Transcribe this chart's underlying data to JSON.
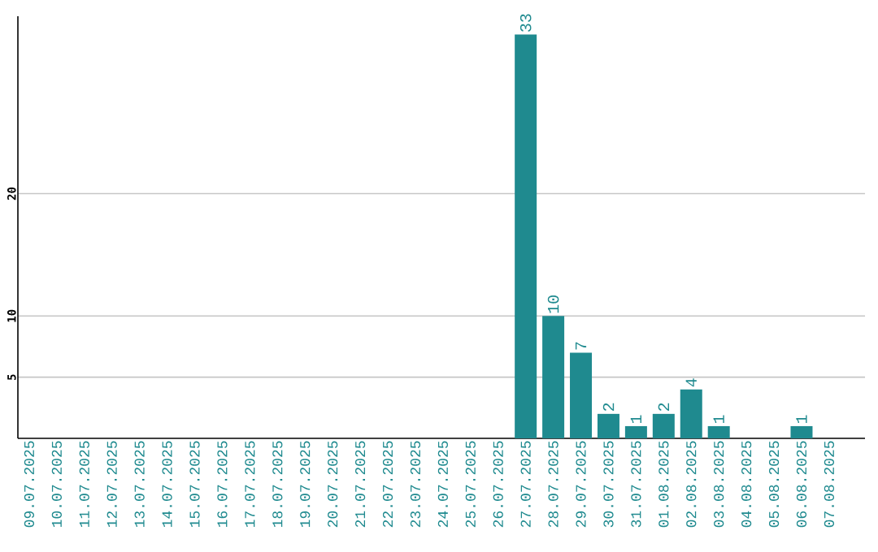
{
  "chart_data": {
    "type": "bar",
    "categories": [
      "09.07.2025",
      "10.07.2025",
      "11.07.2025",
      "12.07.2025",
      "13.07.2025",
      "14.07.2025",
      "15.07.2025",
      "16.07.2025",
      "17.07.2025",
      "18.07.2025",
      "19.07.2025",
      "20.07.2025",
      "21.07.2025",
      "22.07.2025",
      "23.07.2025",
      "24.07.2025",
      "25.07.2025",
      "26.07.2025",
      "27.07.2025",
      "28.07.2025",
      "29.07.2025",
      "30.07.2025",
      "31.07.2025",
      "01.08.2025",
      "02.08.2025",
      "03.08.2025",
      "04.08.2025",
      "05.08.2025",
      "06.08.2025",
      "07.08.2025"
    ],
    "values": [
      0,
      0,
      0,
      0,
      0,
      0,
      0,
      0,
      0,
      0,
      0,
      0,
      0,
      0,
      0,
      0,
      0,
      0,
      33,
      10,
      7,
      2,
      1,
      2,
      4,
      1,
      0,
      0,
      1,
      0
    ],
    "value_labels": [
      null,
      null,
      null,
      null,
      null,
      null,
      null,
      null,
      null,
      null,
      null,
      null,
      null,
      null,
      null,
      null,
      null,
      null,
      "33",
      "10",
      "7",
      "2",
      "1",
      "2",
      "4",
      "1",
      null,
      null,
      "1",
      null
    ],
    "color": "#1f8a8f",
    "ylim": [
      0,
      34.5
    ],
    "yticks": [
      5,
      10,
      20
    ],
    "grid": "y"
  }
}
